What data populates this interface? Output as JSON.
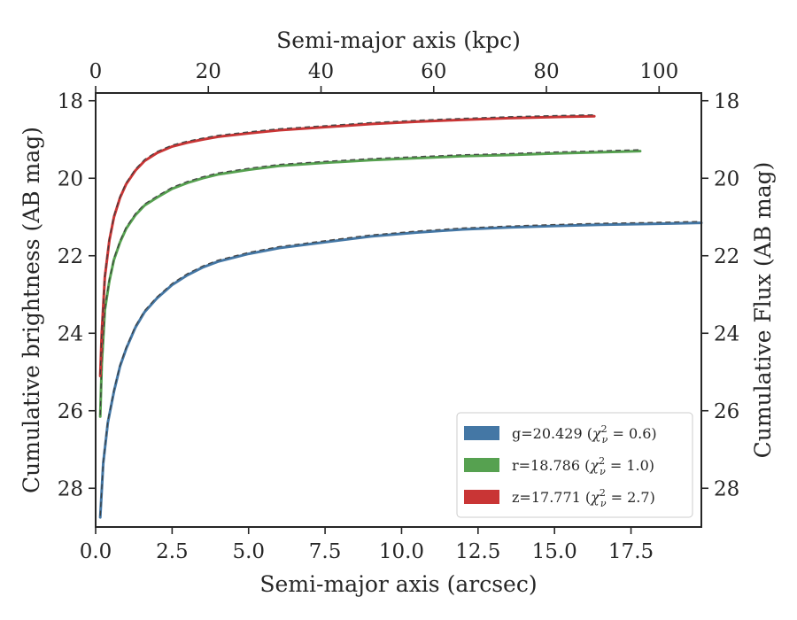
{
  "chart_data": {
    "type": "line",
    "xlabel": "Semi-major axis (arcsec)",
    "top_xlabel": "Semi-major axis (kpc)",
    "ylabel": "Cumulative brightness (AB mag)",
    "right_ylabel": "Cumulative Flux (AB mag)",
    "xlim": [
      0,
      19.8
    ],
    "ylim": [
      29.0,
      17.8
    ],
    "y_inverted": true,
    "top_xlim": [
      0,
      107.5
    ],
    "x_ticks": [
      "0.0",
      "2.5",
      "5.0",
      "7.5",
      "10.0",
      "12.5",
      "15.0",
      "17.5"
    ],
    "y_ticks": [
      "18",
      "20",
      "22",
      "24",
      "26",
      "28"
    ],
    "top_x_ticks": [
      "0",
      "20",
      "40",
      "60",
      "80",
      "100"
    ],
    "legend_position": "lower-right",
    "grid": false,
    "series": [
      {
        "name": "g=20.429 (χ²_ν = 0.6)",
        "legend_main": "g=20.429",
        "legend_chi": "0.6",
        "color": "#4477a5",
        "x": [
          0.15,
          0.25,
          0.4,
          0.6,
          0.8,
          1.0,
          1.3,
          1.6,
          2.0,
          2.5,
          3.0,
          3.5,
          4.0,
          5.0,
          6.0,
          7.5,
          9.0,
          10.5,
          12.0,
          13.5,
          15.0,
          16.5,
          18.0,
          19.8
        ],
        "y": [
          28.75,
          27.35,
          26.3,
          25.5,
          24.85,
          24.4,
          23.85,
          23.45,
          23.1,
          22.75,
          22.5,
          22.3,
          22.15,
          21.95,
          21.8,
          21.65,
          21.5,
          21.4,
          21.32,
          21.27,
          21.23,
          21.2,
          21.18,
          21.15
        ]
      },
      {
        "name": "r=18.786 (χ²_ν = 1.0)",
        "legend_main": "r=18.786",
        "legend_chi": "1.0",
        "color": "#56a150",
        "x": [
          0.15,
          0.2,
          0.3,
          0.45,
          0.6,
          0.8,
          1.0,
          1.3,
          1.6,
          2.0,
          2.5,
          3.0,
          3.5,
          4.0,
          5.0,
          6.0,
          7.5,
          9.0,
          10.5,
          12.0,
          13.5,
          15.0,
          16.5,
          17.8
        ],
        "y": [
          26.15,
          24.8,
          23.4,
          22.65,
          22.1,
          21.65,
          21.3,
          20.95,
          20.7,
          20.5,
          20.27,
          20.12,
          20.0,
          19.9,
          19.78,
          19.68,
          19.6,
          19.53,
          19.48,
          19.43,
          19.4,
          19.36,
          19.33,
          19.3
        ]
      },
      {
        "name": "z=17.771 (χ²_ν = 2.7)",
        "legend_main": "z=17.771",
        "legend_chi": "2.7",
        "color": "#c93535",
        "x": [
          0.15,
          0.2,
          0.3,
          0.45,
          0.6,
          0.8,
          1.0,
          1.3,
          1.6,
          2.0,
          2.5,
          3.0,
          3.5,
          4.0,
          5.0,
          6.0,
          7.5,
          9.0,
          10.5,
          12.0,
          13.5,
          15.0,
          16.3
        ],
        "y": [
          25.1,
          24.0,
          22.55,
          21.6,
          21.0,
          20.5,
          20.15,
          19.8,
          19.55,
          19.35,
          19.18,
          19.08,
          19.0,
          18.93,
          18.84,
          18.76,
          18.68,
          18.6,
          18.54,
          18.49,
          18.45,
          18.42,
          18.4
        ]
      }
    ]
  }
}
